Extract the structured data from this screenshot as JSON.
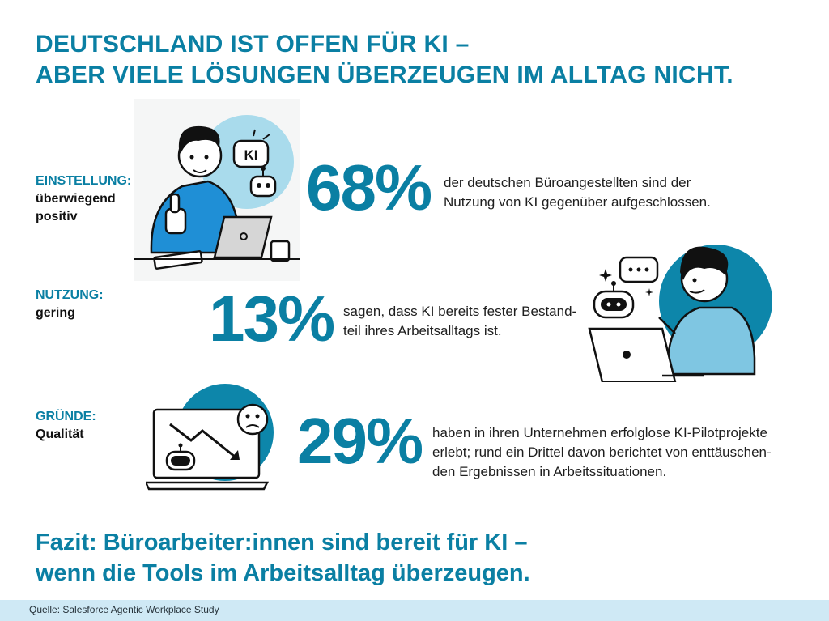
{
  "headline": {
    "line1": "DEUTSCHLAND IST OFFEN FÜR KI –",
    "line2": "ABER VIELE LÖSUNGEN ÜBERZEUGEN IM ALLTAG NICHT."
  },
  "sections": [
    {
      "label": "EINSTELLUNG:",
      "value_line1": "überwiegend",
      "value_line2": "positiv",
      "stat": "68%",
      "description_line1": "der deutschen Büroangestellten sind der",
      "description_line2": "Nutzung von KI gegenüber aufgeschlossen."
    },
    {
      "label": "NUTZUNG:",
      "value_line1": "gering",
      "stat": "13%",
      "description_line1": "sagen, dass KI bereits fester Bestand-",
      "description_line2": "teil ihres Arbeitsalltags ist."
    },
    {
      "label": "GRÜNDE:",
      "value_line1": "Qualität",
      "stat": "29%",
      "description_line1": "haben in ihren Unternehmen erfolglose KI-Pilotprojekte",
      "description_line2": "erlebt; rund ein Drittel davon berichtet von enttäuschen-",
      "description_line3": "den Ergebnissen in Arbeitssituationen."
    }
  ],
  "speech_bubble_text": "KI",
  "conclusion": {
    "line1": "Fazit: Büroarbeiter:innen sind bereit für KI –",
    "line2": "wenn die Tools im Arbeitsalltag überzeugen."
  },
  "footer": {
    "source": "Quelle: Salesforce Agentic Workplace Study"
  },
  "colors": {
    "accent": "#0a7fa3",
    "light_blue": "#a9dbec",
    "footer_bg": "#cfe9f5",
    "shirt_blue": "#1f8fd6",
    "shirt_light": "#7fc6e2"
  },
  "icons": [
    "thumbs-up-icon",
    "ki-speech-bubble-icon",
    "robot-icon",
    "chat-bubble-icon",
    "sparkle-icon",
    "sad-face-icon",
    "trend-down-icon"
  ]
}
